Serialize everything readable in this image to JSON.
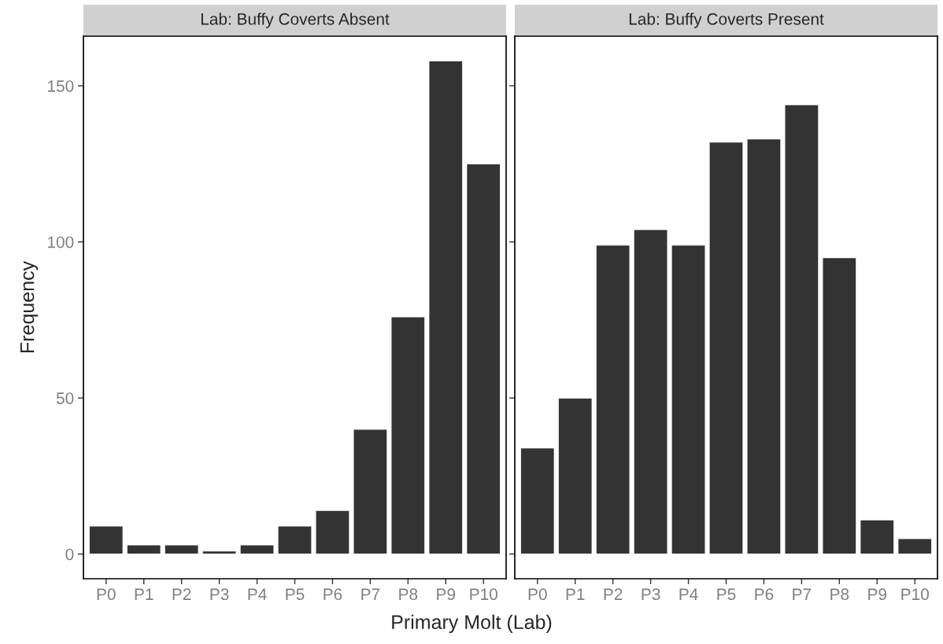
{
  "chart_data": [
    {
      "type": "bar",
      "title": "Lab: Buffy Coverts Absent",
      "xlabel": "Primary Molt (Lab)",
      "ylabel": "Frequency",
      "categories": [
        "P0",
        "P1",
        "P2",
        "P3",
        "P4",
        "P5",
        "P6",
        "P7",
        "P8",
        "P9",
        "P10"
      ],
      "values": [
        9,
        3,
        3,
        1,
        3,
        9,
        14,
        40,
        76,
        158,
        125
      ],
      "color": "#333333",
      "ylim": [
        -7.9,
        165.9
      ],
      "yticks": [
        0,
        50,
        100,
        150
      ],
      "grid": false
    },
    {
      "type": "bar",
      "title": "Lab: Buffy Coverts Present",
      "categories": [
        "P0",
        "P1",
        "P2",
        "P3",
        "P4",
        "P5",
        "P6",
        "P7",
        "P8",
        "P9",
        "P10"
      ],
      "values": [
        34,
        50,
        99,
        104,
        99,
        132,
        133,
        144,
        95,
        11,
        5
      ],
      "color": "#333333",
      "ylim": [
        -7.9,
        165.9
      ],
      "yticks": [
        {
          "value": 0,
          "label": null
        },
        {
          "value": 50,
          "label": null
        },
        {
          "value": 100,
          "label": null
        },
        {
          "value": 150,
          "label": null
        }
      ],
      "grid": false,
      "tick_labels": "x"
    }
  ]
}
